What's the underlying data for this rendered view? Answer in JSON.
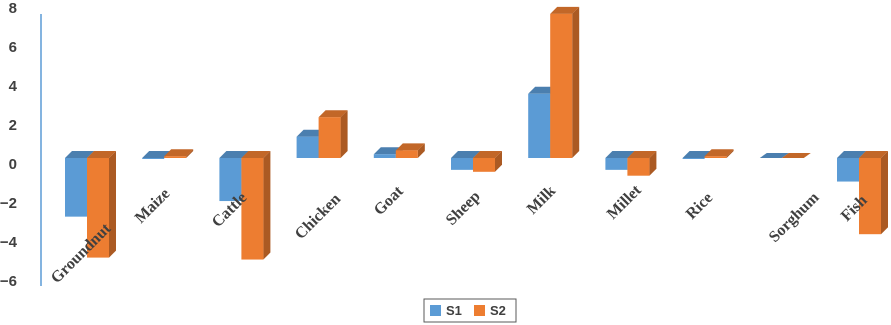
{
  "chart_data": {
    "type": "bar",
    "style": "3d-clustered-column",
    "categories": [
      "Groundnut",
      "Maize",
      "Cattle",
      "Chicken",
      "Goat",
      "Sheep",
      "Milk",
      "Millet",
      "Rice",
      "Sorghum",
      "Fish"
    ],
    "series": [
      {
        "name": "S1",
        "color": "#5B9BD5",
        "values": [
          -2.7,
          0.2,
          -1.9,
          1.4,
          0.5,
          -0.3,
          3.6,
          -0.3,
          0.1,
          0.0,
          -0.9
        ]
      },
      {
        "name": "S2",
        "color": "#ED7D31",
        "values": [
          -4.8,
          0.4,
          -4.9,
          2.4,
          0.7,
          -0.4,
          7.7,
          -0.6,
          0.4,
          0.0,
          -3.6
        ]
      }
    ],
    "yticks": [
      8,
      6,
      4,
      2,
      0,
      -2,
      -4,
      -6
    ],
    "ylim": [
      -6,
      8
    ],
    "legend": {
      "position": "bottom",
      "entries": [
        "S1",
        "S2"
      ]
    },
    "grid": false
  }
}
